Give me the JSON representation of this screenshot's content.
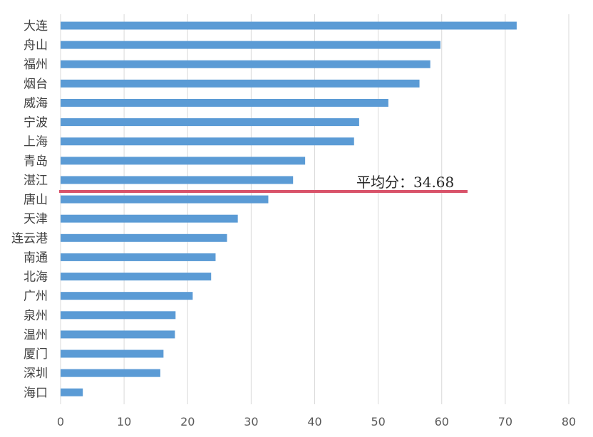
{
  "chart_data": {
    "type": "bar",
    "orientation": "horizontal",
    "categories": [
      "大连",
      "舟山",
      "福州",
      "烟台",
      "威海",
      "宁波",
      "上海",
      "青岛",
      "湛江",
      "唐山",
      "天津",
      "连云港",
      "南通",
      "北海",
      "广州",
      "泉州",
      "温州",
      "厦门",
      "深圳",
      "海口"
    ],
    "values": [
      71.8,
      59.8,
      58.2,
      56.5,
      51.6,
      47.0,
      46.2,
      38.5,
      36.6,
      32.7,
      27.9,
      26.2,
      24.4,
      23.7,
      20.8,
      18.1,
      18.0,
      16.2,
      15.7,
      3.5
    ],
    "xlim": [
      0,
      80
    ],
    "xticks": [
      "0",
      "10",
      "20",
      "30",
      "40",
      "50",
      "60",
      "70",
      "80"
    ],
    "grid": true,
    "bar_color": "#5b9bd5",
    "average": {
      "label": "平均分：34.68",
      "value": 34.68,
      "color": "#d9536a"
    }
  }
}
